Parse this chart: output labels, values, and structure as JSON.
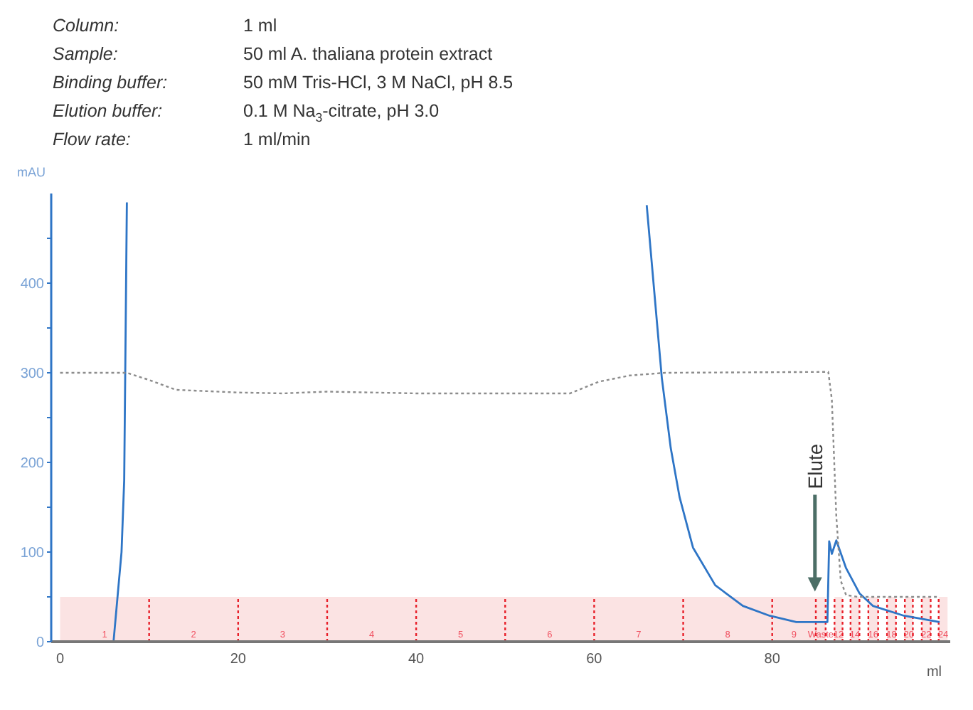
{
  "chart_data": {
    "type": "line",
    "annotations": [
      "Column: 1 ml",
      "Sample: 50 ml A. thaliana protein extract",
      "Binding buffer: 50 mM Tris-HCl, 3 M NaCl, pH 8.5",
      "Elution buffer: 0.1 M Na$_{3}$-citrate, pH 3.0",
      "Flow rate: 1 ml/min",
      {
        "text": "Elute",
        "x": 84.8,
        "y": 56
      }
    ],
    "xlabel": "ml",
    "ylabel": "mAU",
    "xlim": [
      -1,
      100
    ],
    "xticks": [
      0,
      20,
      40,
      60,
      80
    ],
    "bands": [
      {
        "axis": "x",
        "from": 0,
        "to": 10,
        "label": "1",
        "color": "#fbe3e3"
      },
      {
        "axis": "x",
        "from": 10,
        "to": 20,
        "label": "2",
        "color": "#fbe3e3"
      },
      {
        "axis": "x",
        "from": 20,
        "to": 30,
        "label": "3",
        "color": "#fbe3e3"
      },
      {
        "axis": "x",
        "from": 30,
        "to": 40,
        "label": "4",
        "color": "#fbe3e3"
      },
      {
        "axis": "x",
        "from": 40,
        "to": 50,
        "label": "5",
        "color": "#fbe3e3"
      },
      {
        "axis": "x",
        "from": 50,
        "to": 60,
        "label": "6",
        "color": "#fbe3e3"
      },
      {
        "axis": "x",
        "from": 60,
        "to": 70,
        "label": "7",
        "color": "#fbe3e3"
      },
      {
        "axis": "x",
        "from": 70,
        "to": 80,
        "label": "8",
        "color": "#fbe3e3"
      },
      {
        "axis": "x",
        "from": 80,
        "to": 84.9,
        "label": "9",
        "color": "#fbe3e3"
      },
      {
        "axis": "x",
        "from": 84.9,
        "to": 86,
        "label": "Waste",
        "color": "#fbe3e3"
      },
      {
        "axis": "x",
        "from": 87,
        "to": 87.9,
        "label": "12",
        "color": "#fbe3e3"
      },
      {
        "axis": "x",
        "from": 88.8,
        "to": 89.8,
        "label": "14",
        "color": "#fbe3e3"
      },
      {
        "axis": "x",
        "from": 90.8,
        "to": 91.9,
        "label": "16",
        "color": "#fbe3e3"
      },
      {
        "axis": "x",
        "from": 92.9,
        "to": 93.9,
        "label": "18",
        "color": "#fbe3e3"
      },
      {
        "axis": "x",
        "from": 94.9,
        "to": 95.8,
        "label": "20",
        "color": "#fbe3e3"
      },
      {
        "axis": "x",
        "from": 96.8,
        "to": 97.8,
        "label": "22",
        "color": "#fbe3e3"
      },
      {
        "axis": "x",
        "from": 98.7,
        "to": 99.7,
        "label": "24",
        "color": "#fbe3e3"
      }
    ],
    "ylim": [
      0,
      500
    ],
    "yticks": [
      0,
      {
        "value": 50,
        "label": null
      },
      100,
      {
        "value": 150,
        "label": null
      },
      200,
      {
        "value": 250,
        "label": null
      },
      300,
      {
        "value": 350,
        "label": null
      },
      400,
      {
        "value": 450,
        "label": null
      }
    ],
    "grid": false,
    "legend": false,
    "marker": "none",
    "series": [
      {
        "color": "#2e75c6",
        "line_style": "solid",
        "x": [
          0,
          6,
          6.9,
          7.2,
          7.5,
          7.6,
          65.8,
          65.9,
          67.6,
          68.6,
          69.6,
          71.1,
          73.6,
          76.7,
          79.7,
          82.7,
          86.2,
          86.4,
          86.7,
          87.2,
          88.3,
          89.8,
          91.3,
          94.8,
          98.8
        ],
        "values": [
          0,
          0,
          100,
          180,
          490,
          null,
          null,
          487,
          294,
          216,
          161,
          105,
          63,
          40,
          29,
          22,
          22,
          112,
          98,
          113,
          82,
          54,
          40,
          29,
          22
        ]
      },
      {
        "color": "#8c8c8c",
        "line_style": "dotted",
        "x": [
          0,
          7.5,
          10,
          13,
          20,
          25,
          30,
          40,
          50,
          57.3,
          60.5,
          64,
          68,
          86.3,
          86.7,
          87.2,
          87.7,
          88.3,
          89.6,
          98.8
        ],
        "values": [
          300,
          300,
          292,
          281,
          278,
          277,
          279,
          277,
          277,
          277,
          290,
          297,
          300,
          301,
          270,
          140,
          68,
          52,
          50,
          50
        ]
      }
    ],
    "ref_lines": [
      {
        "axis": "x",
        "value": 10,
        "color": "#e8202a",
        "line_style": "dotted"
      },
      {
        "axis": "x",
        "value": 20,
        "color": "#e8202a",
        "line_style": "dotted"
      },
      {
        "axis": "x",
        "value": 30,
        "color": "#e8202a",
        "line_style": "dotted"
      },
      {
        "axis": "x",
        "value": 40,
        "color": "#e8202a",
        "line_style": "dotted"
      },
      {
        "axis": "x",
        "value": 50,
        "color": "#e8202a",
        "line_style": "dotted"
      },
      {
        "axis": "x",
        "value": 60,
        "color": "#e8202a",
        "line_style": "dotted"
      },
      {
        "axis": "x",
        "value": 70,
        "color": "#e8202a",
        "line_style": "dotted"
      },
      {
        "axis": "x",
        "value": 80,
        "color": "#e8202a",
        "line_style": "dotted"
      },
      {
        "axis": "x",
        "value": 84.9,
        "color": "#e8202a",
        "line_style": "dotted"
      },
      {
        "axis": "x",
        "value": 86,
        "color": "#e8202a",
        "line_style": "dotted"
      },
      {
        "axis": "x",
        "value": 87,
        "color": "#e8202a",
        "line_style": "dotted"
      },
      {
        "axis": "x",
        "value": 87.9,
        "color": "#e8202a",
        "line_style": "dotted"
      },
      {
        "axis": "x",
        "value": 88.8,
        "color": "#e8202a",
        "line_style": "dotted"
      },
      {
        "axis": "x",
        "value": 89.8,
        "color": "#e8202a",
        "line_style": "dotted"
      },
      {
        "axis": "x",
        "value": 90.8,
        "color": "#e8202a",
        "line_style": "dotted"
      },
      {
        "axis": "x",
        "value": 91.9,
        "color": "#e8202a",
        "line_style": "dotted"
      },
      {
        "axis": "x",
        "value": 92.9,
        "color": "#e8202a",
        "line_style": "dotted"
      },
      {
        "axis": "x",
        "value": 93.9,
        "color": "#e8202a",
        "line_style": "dotted"
      },
      {
        "axis": "x",
        "value": 94.9,
        "color": "#e8202a",
        "line_style": "dotted"
      },
      {
        "axis": "x",
        "value": 95.8,
        "color": "#e8202a",
        "line_style": "dotted"
      },
      {
        "axis": "x",
        "value": 96.8,
        "color": "#e8202a",
        "line_style": "dotted"
      },
      {
        "axis": "x",
        "value": 97.8,
        "color": "#e8202a",
        "line_style": "dotted"
      },
      {
        "axis": "x",
        "value": 98.7,
        "color": "#e8202a",
        "line_style": "dotted"
      }
    ]
  }
}
